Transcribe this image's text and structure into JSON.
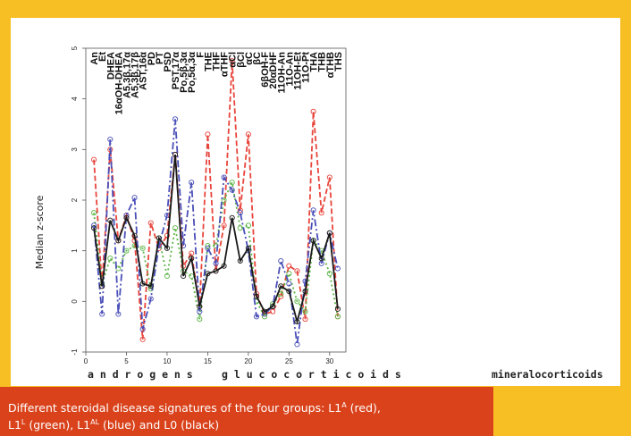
{
  "chart_data": {
    "type": "line",
    "ylabel": "Median z-score",
    "xlim": [
      0,
      32
    ],
    "ylim": [
      -1,
      5
    ],
    "x_ticks": [
      0,
      5,
      10,
      15,
      20,
      25,
      30
    ],
    "y_ticks": [
      -1,
      0,
      1,
      2,
      3,
      4,
      5
    ],
    "metabolite_labels": [
      "An",
      "Et",
      "DHEA",
      "16αOH-DHEA",
      "A5,3β,17α",
      "A5,3β,17β",
      "AST,16α",
      "PD",
      "PT",
      "PSD",
      "PST,17α",
      "Po,5β,3α",
      "Po,5α,3α",
      "F",
      "THE",
      "THF",
      "αTHF",
      "αCl",
      "βCl",
      "αC",
      "βC",
      "6βOH-F",
      "20αDHF",
      "11OH-An",
      "11O-An",
      "11OH-Et",
      "11O-Pt",
      "THA",
      "THB",
      "αTHB",
      "THS"
    ],
    "group_labels": [
      "a n d r o g e n s",
      "g l u c o c o r t i c o i d s",
      "mineralocorticoids"
    ],
    "x": [
      1,
      2,
      3,
      4,
      5,
      6,
      7,
      8,
      9,
      10,
      11,
      12,
      13,
      14,
      15,
      16,
      17,
      18,
      19,
      20,
      21,
      22,
      23,
      24,
      25,
      26,
      27,
      28,
      29,
      30,
      31
    ],
    "series": [
      {
        "color": "#e8453c",
        "dash": "6,3",
        "values": [
          2.8,
          0.3,
          3.0,
          1.2,
          1.7,
          1.2,
          -0.75,
          1.55,
          1.05,
          1.3,
          2.9,
          0.7,
          0.95,
          -0.1,
          3.3,
          0.6,
          1.5,
          4.75,
          1.8,
          3.3,
          0.15,
          -0.25,
          -0.2,
          0.1,
          0.7,
          0.6,
          -0.35,
          3.75,
          1.75,
          2.45,
          -0.3
        ]
      },
      {
        "color": "#5db548",
        "dash": "2,3",
        "values": [
          1.75,
          0.35,
          0.85,
          0.65,
          1.0,
          1.1,
          1.05,
          0.25,
          1.25,
          0.5,
          1.45,
          0.6,
          0.5,
          -0.35,
          1.1,
          1.1,
          2.0,
          2.35,
          1.45,
          1.5,
          0.0,
          -0.3,
          -0.05,
          0.15,
          0.55,
          0.0,
          -0.2,
          1.2,
          1.0,
          0.55,
          -0.3
        ]
      },
      {
        "color": "#4a4fb8",
        "dash": "8,3,2,3",
        "values": [
          1.5,
          -0.25,
          3.2,
          -0.25,
          1.7,
          2.05,
          -0.55,
          0.05,
          1.1,
          1.7,
          3.6,
          1.1,
          2.35,
          -0.2,
          1.05,
          0.75,
          2.45,
          2.2,
          1.75,
          1.0,
          -0.3,
          -0.25,
          -0.1,
          0.8,
          0.35,
          -0.85,
          0.4,
          1.8,
          0.75,
          1.35,
          0.65
        ]
      },
      {
        "color": "#1a1a1a",
        "dash": "",
        "values": [
          1.45,
          0.3,
          1.6,
          1.2,
          1.65,
          1.3,
          0.35,
          0.3,
          1.25,
          1.05,
          2.9,
          0.5,
          0.85,
          -0.1,
          0.55,
          0.6,
          0.7,
          1.65,
          0.8,
          1.05,
          0.1,
          -0.2,
          -0.1,
          0.3,
          0.2,
          -0.4,
          0.2,
          1.2,
          0.85,
          1.35,
          -0.15
        ]
      }
    ]
  },
  "caption": {
    "line1_a": "Different steroidal disease signatures of the four groups: L1",
    "sup_a": "A",
    "line1_b": " (red),",
    "line2_a": "L1",
    "sup_b": "L",
    "line2_b": " (green), L1",
    "sup_c": "AL",
    "line2_c": " (blue) and L0 (black)"
  }
}
